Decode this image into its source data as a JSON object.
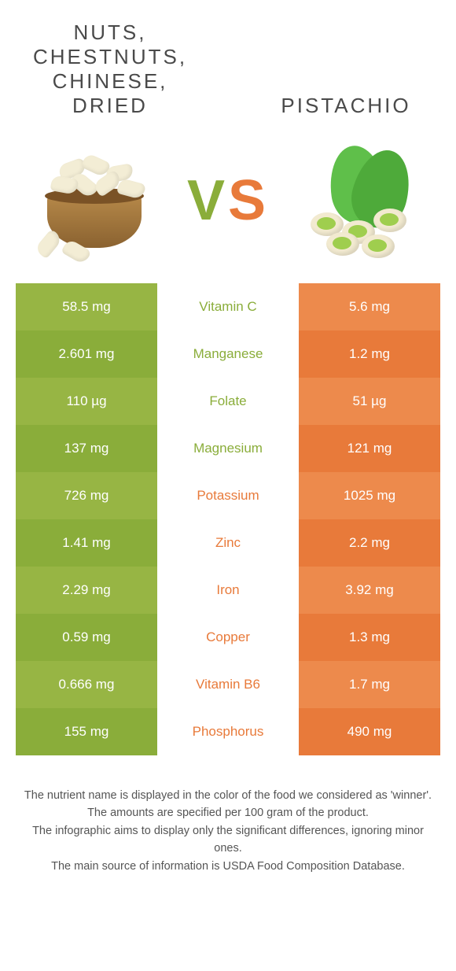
{
  "header": {
    "left_title": "Nuts, chestnuts, chinese, dried",
    "right_title": "Pistachio",
    "vs_v": "V",
    "vs_s": "S"
  },
  "colors": {
    "left_bg": "#97b544",
    "left_bg_alt": "#8aad3a",
    "right_bg": "#ed8a4c",
    "right_bg_alt": "#e87a3a",
    "left_text": "#8aad3a",
    "right_text": "#e87a3a"
  },
  "table": {
    "rows": [
      {
        "nutrient": "Vitamin C",
        "left": "58.5 mg",
        "right": "5.6 mg",
        "winner": "left"
      },
      {
        "nutrient": "Manganese",
        "left": "2.601 mg",
        "right": "1.2 mg",
        "winner": "left"
      },
      {
        "nutrient": "Folate",
        "left": "110 µg",
        "right": "51 µg",
        "winner": "left"
      },
      {
        "nutrient": "Magnesium",
        "left": "137 mg",
        "right": "121 mg",
        "winner": "left"
      },
      {
        "nutrient": "Potassium",
        "left": "726 mg",
        "right": "1025 mg",
        "winner": "right"
      },
      {
        "nutrient": "Zinc",
        "left": "1.41 mg",
        "right": "2.2 mg",
        "winner": "right"
      },
      {
        "nutrient": "Iron",
        "left": "2.29 mg",
        "right": "3.92 mg",
        "winner": "right"
      },
      {
        "nutrient": "Copper",
        "left": "0.59 mg",
        "right": "1.3 mg",
        "winner": "right"
      },
      {
        "nutrient": "Vitamin B6",
        "left": "0.666 mg",
        "right": "1.7 mg",
        "winner": "right"
      },
      {
        "nutrient": "Phosphorus",
        "left": "155 mg",
        "right": "490 mg",
        "winner": "right"
      }
    ]
  },
  "footer": {
    "line1": "The nutrient name is displayed in the color of the food we considered as 'winner'.",
    "line2": "The amounts are specified per 100 gram of the product.",
    "line3": "The infographic aims to display only the significant differences, ignoring minor ones.",
    "line4": "The main source of information is USDA Food Composition Database."
  }
}
